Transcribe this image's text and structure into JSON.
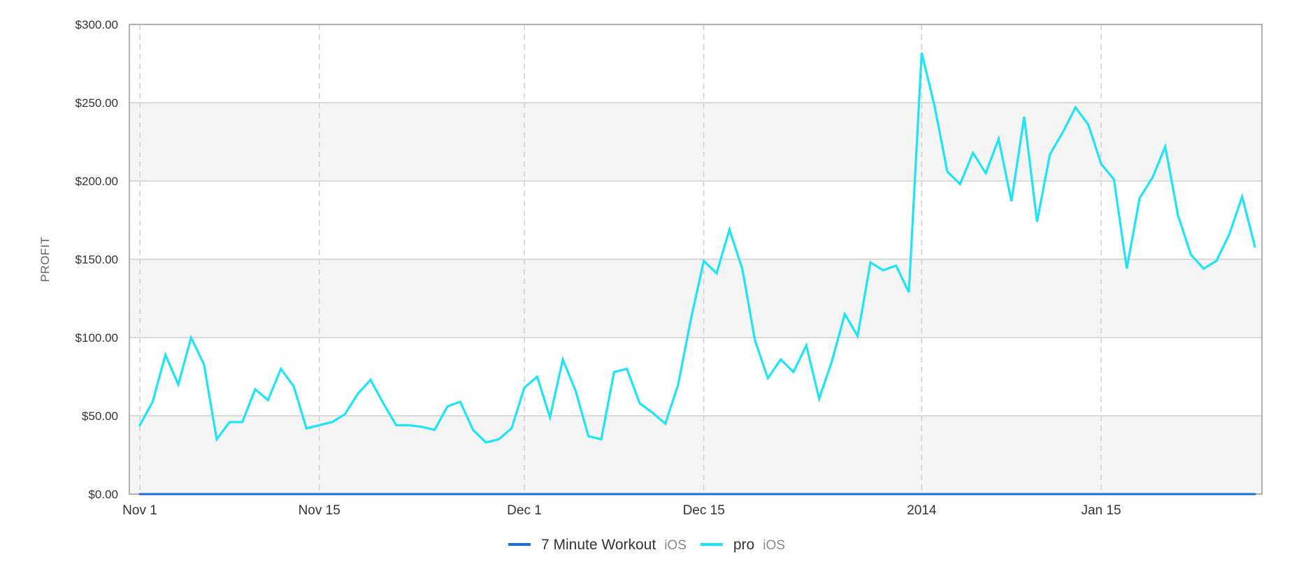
{
  "chart_data": {
    "type": "line",
    "ylabel": "PROFIT",
    "ylim": [
      0,
      300
    ],
    "xlim": [
      "2013-11-01",
      "2014-01-27"
    ],
    "y_ticks": [
      {
        "value": 0,
        "label": "$0.00"
      },
      {
        "value": 50,
        "label": "$50.00"
      },
      {
        "value": 100,
        "label": "$100.00"
      },
      {
        "value": 150,
        "label": "$150.00"
      },
      {
        "value": 200,
        "label": "$200.00"
      },
      {
        "value": 250,
        "label": "$250.00"
      },
      {
        "value": 300,
        "label": "$300.00"
      }
    ],
    "x_ticks": [
      {
        "date": "2013-11-01",
        "label": "Nov 1"
      },
      {
        "date": "2013-11-15",
        "label": "Nov 15"
      },
      {
        "date": "2013-12-01",
        "label": "Dec 1"
      },
      {
        "date": "2013-12-15",
        "label": "Dec 15"
      },
      {
        "date": "2014-01-01",
        "label": "2014"
      },
      {
        "date": "2014-01-15",
        "label": "Jan 15"
      }
    ],
    "grid": true,
    "legend_position": "bottom-center",
    "dates": [
      "2013-11-01",
      "2013-11-02",
      "2013-11-03",
      "2013-11-04",
      "2013-11-05",
      "2013-11-06",
      "2013-11-07",
      "2013-11-08",
      "2013-11-09",
      "2013-11-10",
      "2013-11-11",
      "2013-11-12",
      "2013-11-13",
      "2013-11-14",
      "2013-11-15",
      "2013-11-16",
      "2013-11-17",
      "2013-11-18",
      "2013-11-19",
      "2013-11-20",
      "2013-11-21",
      "2013-11-22",
      "2013-11-23",
      "2013-11-24",
      "2013-11-25",
      "2013-11-26",
      "2013-11-27",
      "2013-11-28",
      "2013-11-29",
      "2013-11-30",
      "2013-12-01",
      "2013-12-02",
      "2013-12-03",
      "2013-12-04",
      "2013-12-05",
      "2013-12-06",
      "2013-12-07",
      "2013-12-08",
      "2013-12-09",
      "2013-12-10",
      "2013-12-11",
      "2013-12-12",
      "2013-12-13",
      "2013-12-14",
      "2013-12-15",
      "2013-12-16",
      "2013-12-17",
      "2013-12-18",
      "2013-12-19",
      "2013-12-20",
      "2013-12-21",
      "2013-12-22",
      "2013-12-23",
      "2013-12-24",
      "2013-12-25",
      "2013-12-26",
      "2013-12-27",
      "2013-12-28",
      "2013-12-29",
      "2013-12-30",
      "2013-12-31",
      "2014-01-01",
      "2014-01-02",
      "2014-01-03",
      "2014-01-04",
      "2014-01-05",
      "2014-01-06",
      "2014-01-07",
      "2014-01-08",
      "2014-01-09",
      "2014-01-10",
      "2014-01-11",
      "2014-01-12",
      "2014-01-13",
      "2014-01-14",
      "2014-01-15",
      "2014-01-16",
      "2014-01-17",
      "2014-01-18",
      "2014-01-19",
      "2014-01-20",
      "2014-01-21",
      "2014-01-22",
      "2014-01-23",
      "2014-01-24",
      "2014-01-25",
      "2014-01-26",
      "2014-01-27"
    ],
    "series": [
      {
        "name": "7 Minute Workout",
        "platform": "iOS",
        "color": "#1a6fe0",
        "values": [
          0,
          0,
          0,
          0,
          0,
          0,
          0,
          0,
          0,
          0,
          0,
          0,
          0,
          0,
          0,
          0,
          0,
          0,
          0,
          0,
          0,
          0,
          0,
          0,
          0,
          0,
          0,
          0,
          0,
          0,
          0,
          0,
          0,
          0,
          0,
          0,
          0,
          0,
          0,
          0,
          0,
          0,
          0,
          0,
          0,
          0,
          0,
          0,
          0,
          0,
          0,
          0,
          0,
          0,
          0,
          0,
          0,
          0,
          0,
          0,
          0,
          0,
          0,
          0,
          0,
          0,
          0,
          0,
          0,
          0,
          0,
          0,
          0,
          0,
          0,
          0,
          0,
          0,
          0,
          0,
          0,
          0,
          0,
          0,
          0,
          0,
          0,
          0
        ]
      },
      {
        "name": "pro",
        "platform": "iOS",
        "color": "#1de4f8",
        "values": [
          44,
          59,
          89,
          70,
          100,
          83,
          35,
          46,
          46,
          67,
          60,
          80,
          69,
          42,
          44,
          46,
          51,
          64,
          73,
          58,
          44,
          44,
          43,
          41,
          56,
          59,
          41,
          33,
          35,
          42,
          68,
          75,
          49,
          86,
          66,
          37,
          35,
          78,
          80,
          58,
          52,
          45,
          70,
          112,
          149,
          141,
          169,
          144,
          98,
          74,
          86,
          78,
          95,
          61,
          85,
          115,
          101,
          148,
          143,
          146,
          129,
          282,
          248,
          206,
          198,
          218,
          205,
          227,
          187,
          241,
          174,
          217,
          231,
          247,
          236,
          211,
          201,
          144,
          189,
          202,
          222,
          178,
          153,
          144,
          149,
          166,
          190,
          158
        ]
      }
    ]
  }
}
